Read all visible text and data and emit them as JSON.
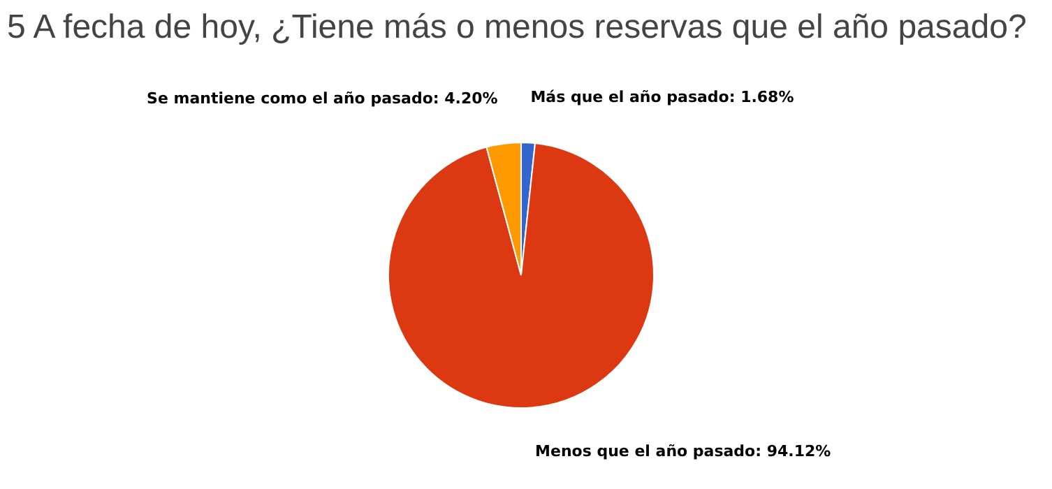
{
  "chart_data": {
    "type": "pie",
    "title": "5 A fecha de hoy, ¿Tiene más o menos reservas que el año pasado?",
    "categories": [
      "Más que el año pasado",
      "Menos que el año pasado",
      "Se mantiene como el año pasado"
    ],
    "values": [
      1.68,
      94.12,
      4.2
    ],
    "value_labels": [
      "1.68%",
      "94.12%",
      "4.20%"
    ],
    "colors": [
      "#3366cc",
      "#dc3912",
      "#ff9900"
    ]
  }
}
